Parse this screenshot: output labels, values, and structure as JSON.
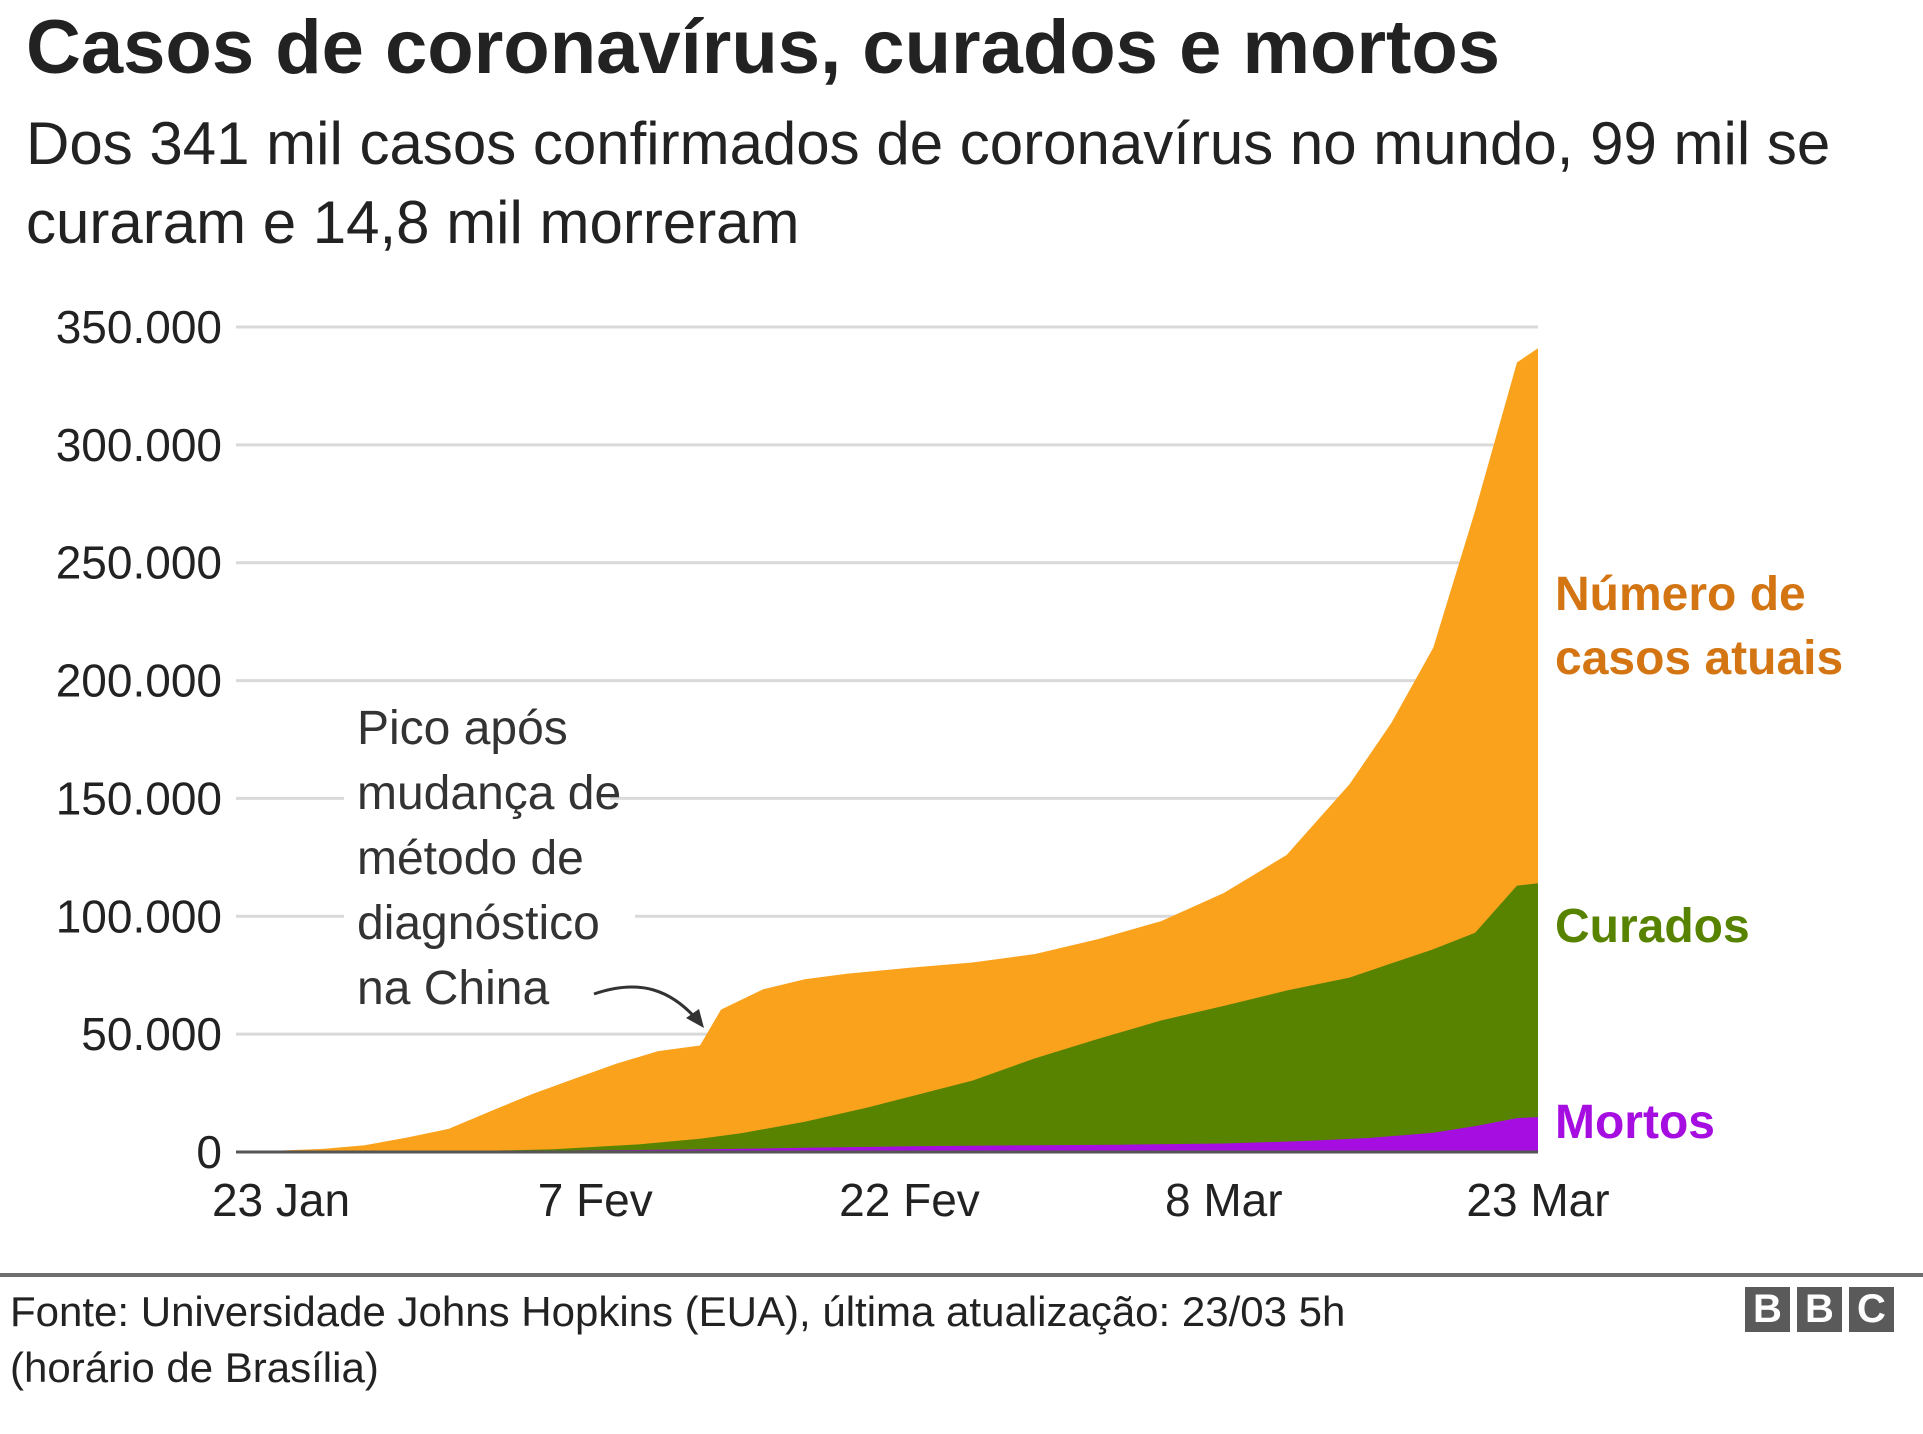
{
  "header": {
    "title": "Casos de coronavírus, curados e mortos",
    "subtitle": "Dos 341 mil casos confirmados de coronavírus no mundo, 99 mil se curaram e 14,8 mil morreram"
  },
  "chart_data": {
    "type": "area",
    "stacked": true,
    "ylim": [
      0,
      350000
    ],
    "y_ticks": [
      {
        "value": 0,
        "label": "0"
      },
      {
        "value": 50000,
        "label": "50.000"
      },
      {
        "value": 100000,
        "label": "100.000"
      },
      {
        "value": 150000,
        "label": "150.000"
      },
      {
        "value": 200000,
        "label": "200.000"
      },
      {
        "value": 250000,
        "label": "250.000"
      },
      {
        "value": 300000,
        "label": "300.000"
      },
      {
        "value": 350000,
        "label": "350.000"
      }
    ],
    "x_ticks": [
      {
        "date": "2020-01-23",
        "label": "23 Jan"
      },
      {
        "date": "2020-02-07",
        "label": "7 Fev"
      },
      {
        "date": "2020-02-22",
        "label": "22 Fev"
      },
      {
        "date": "2020-03-08",
        "label": "8 Mar"
      },
      {
        "date": "2020-03-23",
        "label": "23 Mar"
      }
    ],
    "grid": true,
    "series": [
      {
        "name": "Número de casos atuais",
        "label_lines": [
          "Número de",
          "casos atuais"
        ],
        "color": "#fba21c",
        "label_color": "#d47513",
        "points": [
          [
            "2020-01-21",
            300
          ],
          [
            "2020-01-23",
            650
          ],
          [
            "2020-01-25",
            1300
          ],
          [
            "2020-01-27",
            2900
          ],
          [
            "2020-01-29",
            6100
          ],
          [
            "2020-01-31",
            9800
          ],
          [
            "2020-02-02",
            17300
          ],
          [
            "2020-02-04",
            24600
          ],
          [
            "2020-02-06",
            31100
          ],
          [
            "2020-02-08",
            37400
          ],
          [
            "2020-02-10",
            42800
          ],
          [
            "2020-02-12",
            45200
          ],
          [
            "2020-02-13",
            60400
          ],
          [
            "2020-02-15",
            69000
          ],
          [
            "2020-02-17",
            73300
          ],
          [
            "2020-02-19",
            75600
          ],
          [
            "2020-02-22",
            78200
          ],
          [
            "2020-02-25",
            80400
          ],
          [
            "2020-02-28",
            84000
          ],
          [
            "2020-03-02",
            90300
          ],
          [
            "2020-03-05",
            97900
          ],
          [
            "2020-03-08",
            109900
          ],
          [
            "2020-03-11",
            126000
          ],
          [
            "2020-03-14",
            156000
          ],
          [
            "2020-03-16",
            182000
          ],
          [
            "2020-03-18",
            214000
          ],
          [
            "2020-03-20",
            272000
          ],
          [
            "2020-03-22",
            335000
          ],
          [
            "2020-03-23",
            341000
          ]
        ]
      },
      {
        "name": "Curados",
        "label_lines": [
          "Curados"
        ],
        "color": "#588300",
        "label_color": "#588300",
        "points": [
          [
            "2020-01-21",
            0
          ],
          [
            "2020-01-27",
            50
          ],
          [
            "2020-02-01",
            300
          ],
          [
            "2020-02-05",
            1200
          ],
          [
            "2020-02-09",
            3200
          ],
          [
            "2020-02-12",
            5600
          ],
          [
            "2020-02-14",
            8000
          ],
          [
            "2020-02-17",
            12800
          ],
          [
            "2020-02-20",
            18900
          ],
          [
            "2020-02-22",
            23400
          ],
          [
            "2020-02-25",
            30300
          ],
          [
            "2020-02-28",
            39800
          ],
          [
            "2020-03-02",
            48000
          ],
          [
            "2020-03-05",
            55800
          ],
          [
            "2020-03-08",
            62000
          ],
          [
            "2020-03-11",
            68500
          ],
          [
            "2020-03-14",
            74000
          ],
          [
            "2020-03-16",
            80000
          ],
          [
            "2020-03-18",
            86000
          ],
          [
            "2020-03-20",
            93000
          ],
          [
            "2020-03-22",
            113000
          ],
          [
            "2020-03-23",
            114000
          ]
        ]
      },
      {
        "name": "Mortos",
        "label_lines": [
          "Mortos"
        ],
        "color": "#a60de1",
        "label_color": "#a60de1",
        "points": [
          [
            "2020-01-21",
            0
          ],
          [
            "2020-01-27",
            80
          ],
          [
            "2020-02-01",
            300
          ],
          [
            "2020-02-07",
            700
          ],
          [
            "2020-02-12",
            1100
          ],
          [
            "2020-02-17",
            1800
          ],
          [
            "2020-02-22",
            2400
          ],
          [
            "2020-02-27",
            2800
          ],
          [
            "2020-03-03",
            3100
          ],
          [
            "2020-03-08",
            3600
          ],
          [
            "2020-03-12",
            4700
          ],
          [
            "2020-03-15",
            6000
          ],
          [
            "2020-03-18",
            8200
          ],
          [
            "2020-03-20",
            11000
          ],
          [
            "2020-03-22",
            14400
          ],
          [
            "2020-03-23",
            14800
          ]
        ]
      }
    ],
    "annotations": [
      {
        "text_lines": [
          "Pico após",
          "mudança de",
          "método de",
          "diagnóstico",
          "na China"
        ],
        "points_to": [
          "2020-02-13",
          45200
        ]
      }
    ]
  },
  "footer": {
    "source_lines": [
      "Fonte: Universidade Johns Hopkins (EUA), última atualização: 23/03 5h",
      "(horário de Brasília)"
    ],
    "logo_letters": [
      "B",
      "B",
      "C"
    ]
  }
}
